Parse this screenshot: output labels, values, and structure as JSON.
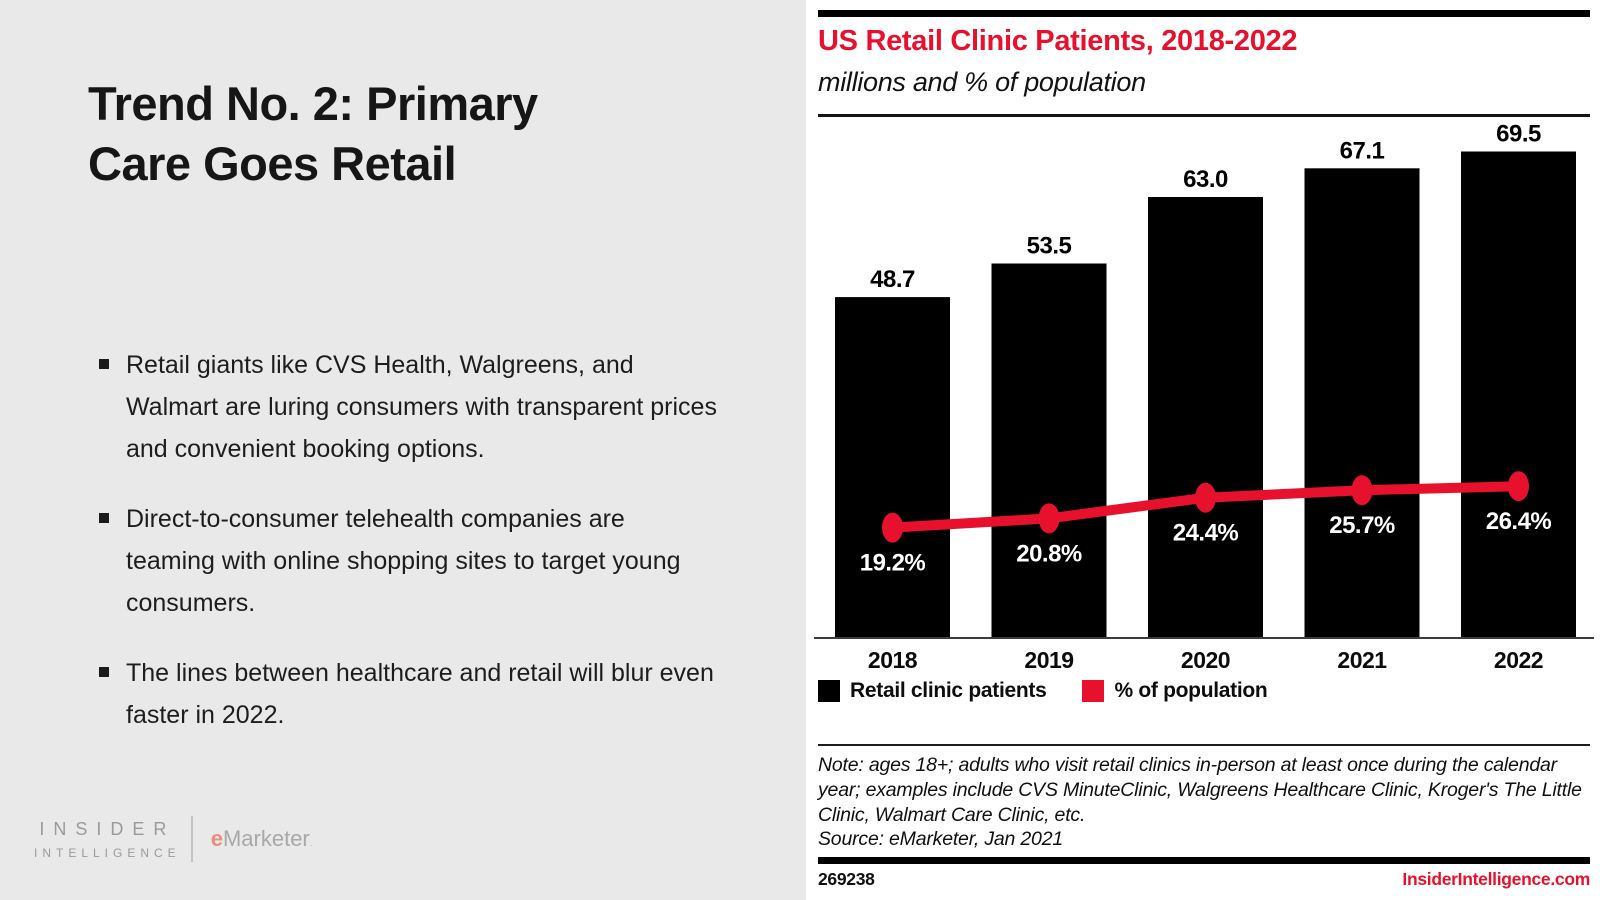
{
  "slide": {
    "title_lines": [
      "Trend No. 2: Primary",
      "Care Goes Retail"
    ],
    "bullets": [
      "Retail giants like CVS Health, Walgreens, and Walmart are luring consumers with transparent prices and convenient booking options.",
      "Direct-to-consumer telehealth companies are teaming with online shopping sites to target young consumers.",
      "The lines between healthcare and retail will blur even faster in 2022."
    ],
    "logo": {
      "top": "INSIDER",
      "bottom": "INTELLIGENCE",
      "brand_prefix": "e",
      "brand_name": "Marketer",
      "brand_mark": "."
    }
  },
  "chart": {
    "title": "US Retail Clinic Patients, 2018-2022",
    "subtitle": "millions and % of population",
    "legend": {
      "bar_label": "Retail clinic patients",
      "line_label": "% of population"
    },
    "note": "Note: ages 18+; adults who visit retail clinics in-person at least once during the calendar year; examples include CVS MinuteClinic, Walgreens Healthcare Clinic, Kroger's The Little Clinic, Walmart Care Clinic, etc.",
    "source": "Source: eMarketer, Jan 2021",
    "chart_id": "269238",
    "website": "InsiderIntelligence.com",
    "colors": {
      "accent_red": "#e8112d",
      "bar_black": "#000000"
    }
  },
  "chart_data": {
    "type": "bar",
    "title": "US Retail Clinic Patients, 2018-2022",
    "subtitle": "millions and % of population",
    "categories": [
      "2018",
      "2019",
      "2020",
      "2021",
      "2022"
    ],
    "series": [
      {
        "name": "Retail clinic patients",
        "type": "bar",
        "unit": "millions",
        "color": "#000000",
        "values": [
          48.7,
          53.5,
          63.0,
          67.1,
          69.5
        ]
      },
      {
        "name": "% of population",
        "type": "line",
        "unit": "%",
        "color": "#e8112d",
        "values": [
          19.2,
          20.8,
          24.4,
          25.7,
          26.4
        ]
      }
    ],
    "xlabel": "",
    "ylabel": "",
    "grid": false,
    "value_labels": true,
    "legend_position": "bottom"
  }
}
